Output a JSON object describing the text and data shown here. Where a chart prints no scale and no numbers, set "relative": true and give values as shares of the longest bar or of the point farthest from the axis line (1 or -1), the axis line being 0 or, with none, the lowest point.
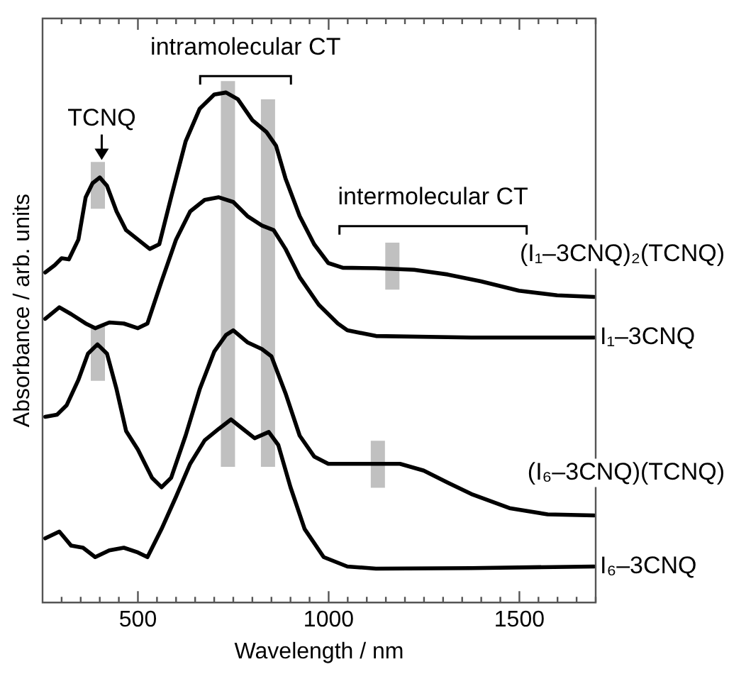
{
  "chart_data": {
    "type": "line",
    "relative": true,
    "marker": "none",
    "tick_labels": "x",
    "xlabel": "Wavelength / nm",
    "ylabel": "Absorbance / arb. units",
    "xlim": [
      250,
      1700
    ],
    "xticks": [
      {
        "value": 300,
        "label": null
      },
      {
        "value": 350,
        "label": null
      },
      {
        "value": 400,
        "label": null
      },
      {
        "value": 450,
        "label": null
      },
      500,
      {
        "value": 550,
        "label": null
      },
      {
        "value": 600,
        "label": null
      },
      {
        "value": 650,
        "label": null
      },
      {
        "value": 700,
        "label": null
      },
      {
        "value": 750,
        "label": null
      },
      {
        "value": 800,
        "label": null
      },
      {
        "value": 850,
        "label": null
      },
      {
        "value": 900,
        "label": null
      },
      {
        "value": 950,
        "label": null
      },
      1000,
      {
        "value": 1050,
        "label": null
      },
      {
        "value": 1100,
        "label": null
      },
      {
        "value": 1150,
        "label": null
      },
      {
        "value": 1200,
        "label": null
      },
      {
        "value": 1250,
        "label": null
      },
      {
        "value": 1300,
        "label": null
      },
      {
        "value": 1350,
        "label": null
      },
      {
        "value": 1400,
        "label": null
      },
      {
        "value": 1450,
        "label": null
      },
      1500,
      {
        "value": 1550,
        "label": null
      },
      {
        "value": 1600,
        "label": null
      },
      {
        "value": 1650,
        "label": null
      },
      {
        "value": 1700,
        "label": null
      }
    ],
    "series": [
      {
        "name": "(I₁–3CNQ)₂(TCNQ)",
        "color": "#000000",
        "x": [
          257,
          282,
          300,
          319,
          344,
          363,
          381,
          400,
          419,
          444,
          469,
          500,
          531,
          556,
          587,
          625,
          662,
          700,
          731,
          762,
          800,
          837,
          862,
          887,
          924,
          962,
          999,
          1037,
          1124,
          1224,
          1312,
          1399,
          1499,
          1599,
          1696
        ],
        "values": [
          0.633,
          0.647,
          0.66,
          0.658,
          0.696,
          0.777,
          0.804,
          0.815,
          0.799,
          0.75,
          0.714,
          0.696,
          0.678,
          0.687,
          0.777,
          0.884,
          0.947,
          0.974,
          0.978,
          0.965,
          0.925,
          0.902,
          0.876,
          0.813,
          0.741,
          0.687,
          0.651,
          0.642,
          0.641,
          0.638,
          0.629,
          0.616,
          0.598,
          0.589,
          0.586
        ]
      },
      {
        "name": "I₁–3CNQ",
        "color": "#000000",
        "x": [
          257,
          294,
          325,
          363,
          388,
          425,
          463,
          500,
          525,
          562,
          600,
          637,
          675,
          712,
          750,
          787,
          825,
          856,
          887,
          924,
          974,
          1024,
          1049,
          1124,
          1374,
          1696
        ],
        "values": [
          0.544,
          0.566,
          0.553,
          0.535,
          0.526,
          0.537,
          0.535,
          0.526,
          0.535,
          0.616,
          0.696,
          0.75,
          0.772,
          0.777,
          0.768,
          0.741,
          0.723,
          0.714,
          0.678,
          0.624,
          0.571,
          0.535,
          0.522,
          0.511,
          0.508,
          0.508
        ]
      },
      {
        "name": "(I₆–3CNQ)(TCNQ)",
        "color": "#000000",
        "x": [
          257,
          288,
          313,
          344,
          369,
          394,
          419,
          444,
          469,
          500,
          537,
          562,
          587,
          625,
          662,
          700,
          731,
          750,
          787,
          825,
          850,
          887,
          924,
          962,
          999,
          1074,
          1187,
          1249,
          1312,
          1374,
          1474,
          1574,
          1696
        ],
        "values": [
          0.356,
          0.36,
          0.378,
          0.427,
          0.477,
          0.495,
          0.477,
          0.409,
          0.329,
          0.293,
          0.239,
          0.221,
          0.239,
          0.32,
          0.409,
          0.481,
          0.513,
          0.522,
          0.499,
          0.486,
          0.472,
          0.401,
          0.32,
          0.28,
          0.266,
          0.266,
          0.266,
          0.253,
          0.23,
          0.208,
          0.181,
          0.169,
          0.167
        ]
      },
      {
        "name": "I₆–3CNQ",
        "color": "#000000",
        "x": [
          257,
          294,
          325,
          356,
          388,
          425,
          463,
          500,
          525,
          562,
          600,
          637,
          675,
          712,
          744,
          775,
          806,
          843,
          868,
          900,
          937,
          987,
          1049,
          1124,
          1374,
          1696
        ],
        "values": [
          0.123,
          0.136,
          0.109,
          0.105,
          0.087,
          0.1,
          0.105,
          0.096,
          0.087,
          0.141,
          0.203,
          0.266,
          0.311,
          0.333,
          0.351,
          0.333,
          0.315,
          0.327,
          0.302,
          0.221,
          0.141,
          0.087,
          0.069,
          0.065,
          0.066,
          0.069
        ]
      },
      {
        "type": "line",
        "color": "#c0c0c0",
        "x": [
          395,
          395
        ],
        "values": [
          0.755,
          0.845
        ]
      },
      {
        "type": "line",
        "color": "#c0c0c0",
        "x": [
          736,
          736
        ],
        "values": [
          0.26,
          1.0
        ]
      },
      {
        "type": "line",
        "color": "#c0c0c0",
        "x": [
          841,
          841
        ],
        "values": [
          0.26,
          0.965
        ]
      },
      {
        "type": "line",
        "color": "#c0c0c0",
        "x": [
          1167,
          1167
        ],
        "values": [
          0.6,
          0.69
        ]
      },
      {
        "type": "line",
        "color": "#c0c0c0",
        "x": [
          395,
          395
        ],
        "values": [
          0.425,
          0.53
        ]
      },
      {
        "type": "line",
        "color": "#c0c0c0",
        "x": [
          1129,
          1129
        ],
        "values": [
          0.22,
          0.31
        ]
      }
    ],
    "annotations": [
      "TCNQ",
      "intramolecular CT",
      "intermolecular CT"
    ]
  }
}
